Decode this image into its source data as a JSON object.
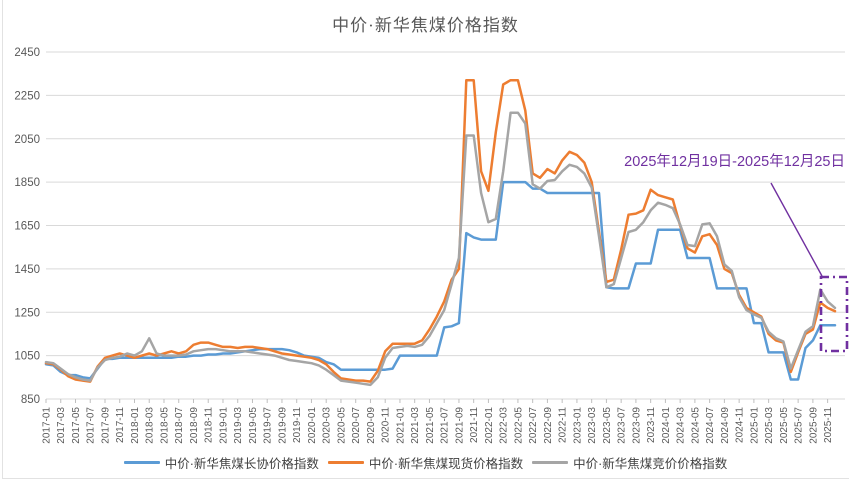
{
  "annotation": {
    "label": "2025年12月19日-2025年12月25日",
    "color": "#7030A0",
    "note": "dash-dot purple box highlighting the latest week's values with a leader line from the date-range label"
  },
  "chart_data": {
    "type": "line",
    "title": "中价·新华焦煤价格指数",
    "x_start": "2017-01",
    "x_end": "2025-12",
    "x_frequency": "monthly (values approximate a weekly index)",
    "x_tick_labels": [
      "2017-01",
      "2017-03",
      "2017-05",
      "2017-07",
      "2017-09",
      "2017-11",
      "2018-01",
      "2018-03",
      "2018-05",
      "2018-07",
      "2018-09",
      "2018-11",
      "2019-01",
      "2019-03",
      "2019-05",
      "2019-07",
      "2019-09",
      "2019-11",
      "2020-01",
      "2020-03",
      "2020-05",
      "2020-07",
      "2020-09",
      "2020-11",
      "2021-01",
      "2021-03",
      "2021-05",
      "2021-07",
      "2021-09",
      "2021-11",
      "2022-01",
      "2022-03",
      "2022-05",
      "2022-07",
      "2022-09",
      "2022-11",
      "2023-01",
      "2023-03",
      "2023-05",
      "2023-07",
      "2023-09",
      "2023-11",
      "2024-01",
      "2024-03",
      "2024-05",
      "2024-07",
      "2024-09",
      "2024-11",
      "2025-01",
      "2025-03",
      "2025-05",
      "2025-07",
      "2025-09",
      "2025-11"
    ],
    "y_ticks": [
      850,
      1050,
      1250,
      1450,
      1650,
      1850,
      2050,
      2250,
      2450
    ],
    "ylim": [
      850,
      2450
    ],
    "grid": "horizontal gridlines only",
    "legend_position": "bottom",
    "series": [
      {
        "name": "中价·新华焦煤长协价格指数",
        "color": "#5B9BD5",
        "values": [
          1010,
          1005,
          975,
          960,
          960,
          950,
          945,
          990,
          1035,
          1035,
          1040,
          1040,
          1040,
          1040,
          1040,
          1040,
          1040,
          1040,
          1045,
          1045,
          1050,
          1050,
          1055,
          1055,
          1060,
          1060,
          1065,
          1070,
          1075,
          1080,
          1080,
          1080,
          1080,
          1075,
          1065,
          1050,
          1045,
          1040,
          1020,
          1010,
          985,
          985,
          985,
          985,
          985,
          985,
          985,
          990,
          1050,
          1050,
          1050,
          1050,
          1050,
          1050,
          1180,
          1185,
          1200,
          1615,
          1595,
          1585,
          1585,
          1585,
          1850,
          1850,
          1850,
          1850,
          1820,
          1820,
          1800,
          1800,
          1800,
          1800,
          1800,
          1800,
          1800,
          1800,
          1365,
          1360,
          1360,
          1360,
          1475,
          1475,
          1475,
          1630,
          1630,
          1630,
          1630,
          1500,
          1500,
          1500,
          1500,
          1360,
          1360,
          1360,
          1360,
          1360,
          1200,
          1200,
          1065,
          1065,
          1065,
          940,
          940,
          1085,
          1120,
          1190,
          1190,
          1190
        ]
      },
      {
        "name": "中价·新华焦煤现货价格指数",
        "color": "#ED7D31",
        "values": [
          1015,
          1010,
          985,
          955,
          940,
          935,
          930,
          1000,
          1040,
          1050,
          1060,
          1050,
          1040,
          1050,
          1060,
          1050,
          1060,
          1070,
          1060,
          1070,
          1100,
          1110,
          1110,
          1100,
          1090,
          1090,
          1085,
          1090,
          1090,
          1085,
          1080,
          1070,
          1060,
          1055,
          1050,
          1045,
          1040,
          1030,
          1010,
          975,
          945,
          940,
          935,
          935,
          930,
          980,
          1070,
          1105,
          1105,
          1105,
          1105,
          1120,
          1170,
          1230,
          1300,
          1400,
          1450,
          2320,
          2320,
          1900,
          1810,
          2080,
          2300,
          2320,
          2320,
          2180,
          1890,
          1870,
          1910,
          1890,
          1950,
          1990,
          1975,
          1940,
          1850,
          1620,
          1390,
          1400,
          1540,
          1700,
          1705,
          1720,
          1815,
          1790,
          1780,
          1770,
          1650,
          1545,
          1525,
          1600,
          1610,
          1560,
          1450,
          1430,
          1330,
          1270,
          1250,
          1230,
          1150,
          1120,
          1110,
          975,
          1065,
          1150,
          1170,
          1295,
          1270,
          1255
        ]
      },
      {
        "name": "中价·新华焦煤竞价价格指数",
        "color": "#A5A5A5",
        "values": [
          1020,
          1015,
          990,
          965,
          950,
          940,
          935,
          995,
          1030,
          1040,
          1045,
          1060,
          1050,
          1070,
          1130,
          1060,
          1050,
          1050,
          1050,
          1055,
          1070,
          1075,
          1080,
          1080,
          1075,
          1070,
          1070,
          1070,
          1065,
          1060,
          1055,
          1050,
          1040,
          1030,
          1025,
          1020,
          1015,
          1005,
          985,
          960,
          935,
          930,
          925,
          920,
          915,
          950,
          1040,
          1085,
          1090,
          1095,
          1090,
          1100,
          1140,
          1200,
          1260,
          1380,
          1500,
          2065,
          2065,
          1800,
          1665,
          1680,
          1900,
          2170,
          2170,
          2120,
          1840,
          1820,
          1855,
          1860,
          1900,
          1930,
          1920,
          1890,
          1825,
          1600,
          1365,
          1380,
          1500,
          1620,
          1630,
          1665,
          1720,
          1755,
          1745,
          1730,
          1655,
          1560,
          1555,
          1655,
          1660,
          1600,
          1470,
          1440,
          1320,
          1260,
          1240,
          1225,
          1160,
          1130,
          1115,
          990,
          1075,
          1160,
          1185,
          1355,
          1300,
          1270
        ]
      }
    ]
  }
}
